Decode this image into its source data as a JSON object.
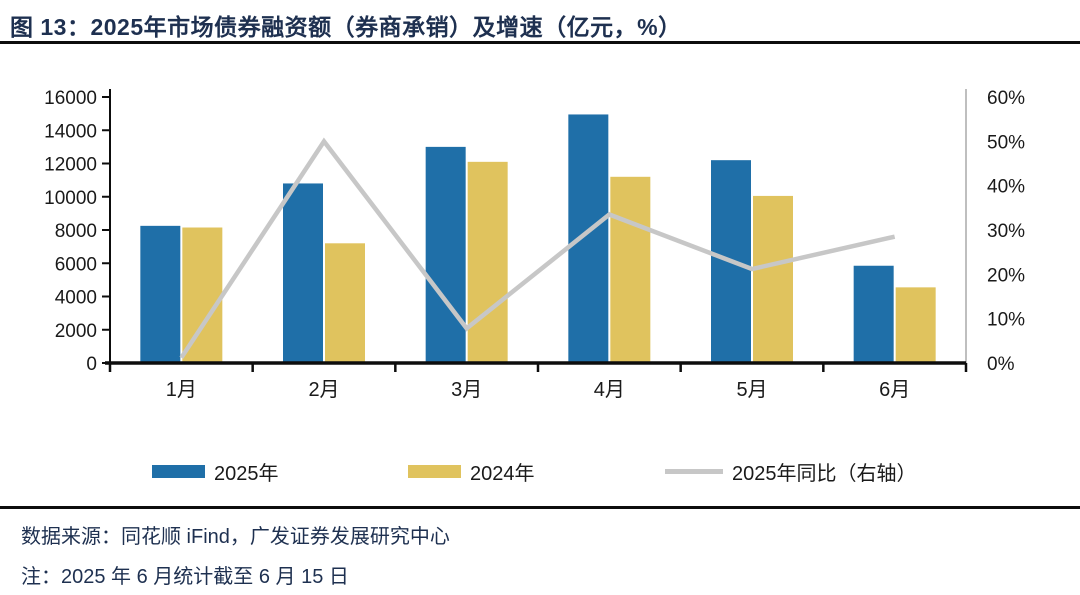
{
  "title": "图 13：2025年市场债券融资额（券商承销）及增速（亿元，%）",
  "legend": {
    "bar_2025_label": "2025年",
    "bar_2024_label": "2024年",
    "line_label": "2025年同比（右轴）"
  },
  "footer": {
    "source": "数据来源：同花顺 iFind，广发证券发展研究中心",
    "note": "注：2025 年 6 月统计截至 6 月 15 日"
  },
  "colors": {
    "bar_2025": "#1F6FA8",
    "bar_2024": "#E0C35E",
    "line": "#C7C7C7",
    "axis": "#0d0d0d",
    "right_axis": "#BFBFBF",
    "title_text": "#1E3050"
  },
  "chart_data": {
    "type": "bar",
    "subtype": "grouped-bars-with-line",
    "title": "2025年市场债券融资额（券商承销）及增速（亿元，%）",
    "categories": [
      "1月",
      "2月",
      "3月",
      "4月",
      "5月",
      "6月"
    ],
    "series": [
      {
        "name": "2025年",
        "kind": "bar",
        "axis": "left",
        "values": [
          8250,
          10800,
          13000,
          14950,
          12200,
          5850
        ]
      },
      {
        "name": "2024年",
        "kind": "bar",
        "axis": "left",
        "values": [
          8150,
          7200,
          12100,
          11200,
          10050,
          4550
        ]
      },
      {
        "name": "2025年同比（右轴）",
        "kind": "line",
        "axis": "right",
        "values": [
          1.2,
          50.0,
          7.8,
          33.5,
          21.2,
          28.5
        ]
      }
    ],
    "left_axis": {
      "min": 0,
      "max": 16000,
      "step": 2000,
      "tick_labels": [
        "0",
        "2000",
        "4000",
        "6000",
        "8000",
        "10000",
        "12000",
        "14000",
        "16000"
      ]
    },
    "right_axis": {
      "min": 0,
      "max": 60,
      "step": 10,
      "tick_labels": [
        "0%",
        "10%",
        "20%",
        "30%",
        "40%",
        "50%",
        "60%"
      ]
    },
    "grid": false,
    "legend_position": "bottom"
  }
}
